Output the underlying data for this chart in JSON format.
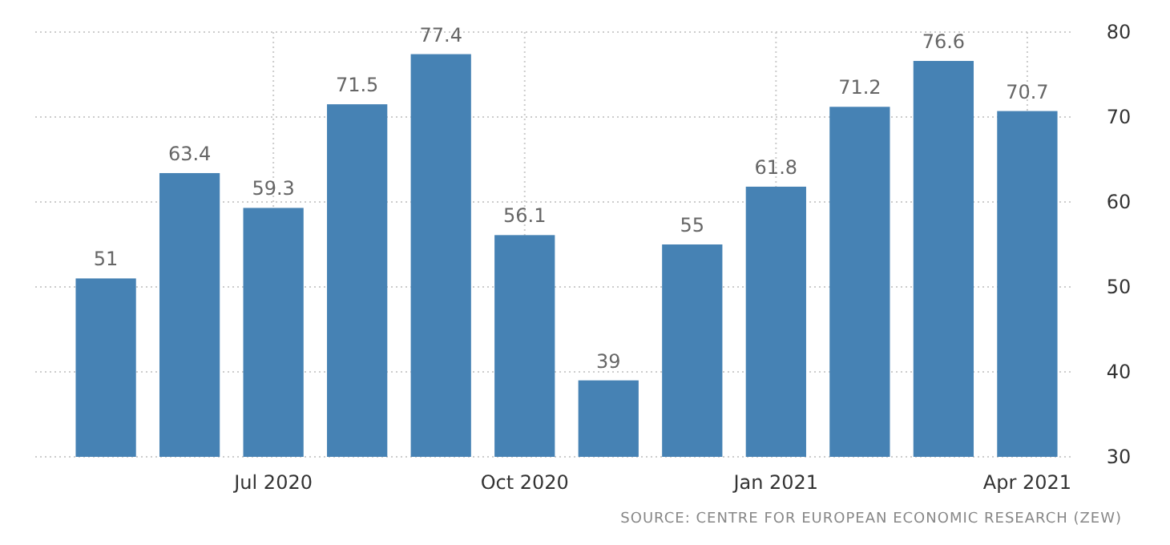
{
  "chart_data": {
    "type": "bar",
    "categories": [
      null,
      null,
      "Jul 2020",
      null,
      null,
      "Oct 2020",
      null,
      null,
      "Jan 2021",
      null,
      null,
      "Apr 2021"
    ],
    "values": [
      51,
      63.4,
      59.3,
      71.5,
      77.4,
      56.1,
      39,
      55,
      61.8,
      71.2,
      76.6,
      70.7
    ],
    "color": "#4682b4",
    "ylim": [
      30,
      80
    ],
    "yticks": [
      30,
      40,
      50,
      60,
      70,
      80
    ],
    "grid": true,
    "data_labels": true,
    "annotations": [
      "SOURCE: CENTRE FOR EUROPEAN ECONOMIC RESEARCH (ZEW)"
    ]
  }
}
